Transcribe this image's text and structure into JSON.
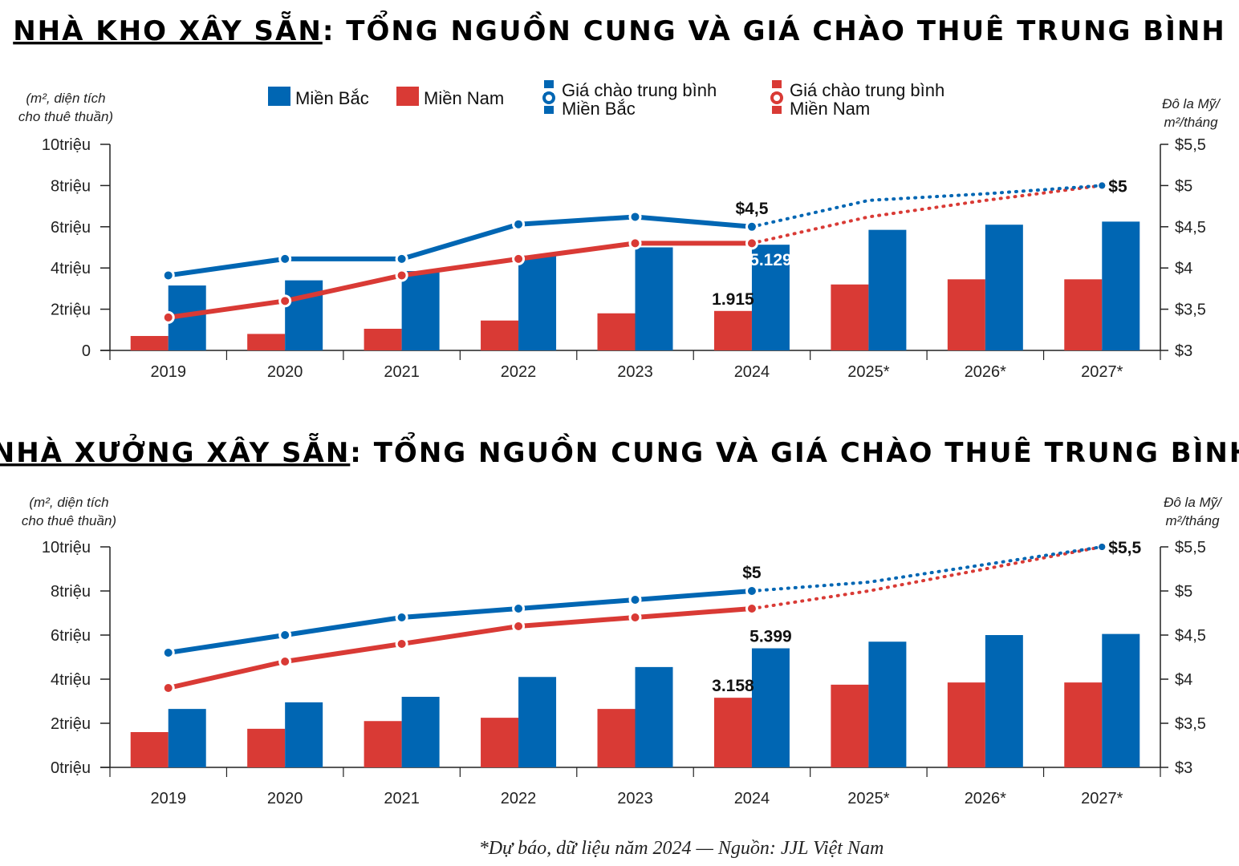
{
  "colors": {
    "north": "#0066b3",
    "south": "#d93a35",
    "axis": "#222222"
  },
  "footnote": "*Dự báo, dữ liệu năm 2024 — Nguồn: JJL Việt Nam",
  "legend": {
    "north_bar": "Miền Bắc",
    "south_bar": "Miền Nam",
    "north_line_1": "Giá chào trung bình",
    "north_line_2": "Miền Bắc",
    "south_line_1": "Giá chào trung bình",
    "south_line_2": "Miền Nam"
  },
  "chart_data": [
    {
      "type": "bar",
      "title_underlined": "NHÀ KHO XÂY SẴN",
      "title_rest": ": TỔNG NGUỒN CUNG VÀ GIÁ CHÀO THUÊ TRUNG BÌNH",
      "ylabel_left_1": "(m², diện tích",
      "ylabel_left_2": "cho thuê thuần)",
      "ylabel_right_1": "Đô la Mỹ/",
      "ylabel_right_2": "m²/tháng",
      "categories": [
        "2019",
        "2020",
        "2021",
        "2022",
        "2023",
        "2024",
        "2025*",
        "2026*",
        "2027*"
      ],
      "ylim": [
        0,
        10
      ],
      "yticks": [
        "0",
        "2triệu",
        "4triệu",
        "6triệu",
        "8triệu",
        "10triệu"
      ],
      "y2lim": [
        3,
        5.5
      ],
      "y2ticks": [
        "$3",
        "$3,5",
        "$4",
        "$4,5",
        "$5",
        "$5,5"
      ],
      "series": [
        {
          "name": "Miền Nam",
          "kind": "bar",
          "values": [
            0.7,
            0.8,
            1.05,
            1.45,
            1.8,
            1.915,
            3.2,
            3.45,
            3.45
          ]
        },
        {
          "name": "Miền Bắc",
          "kind": "bar",
          "values": [
            3.15,
            3.4,
            3.85,
            4.6,
            5.0,
            5.129,
            5.85,
            6.1,
            6.25
          ]
        },
        {
          "name": "Giá chào trung bình Miền Bắc",
          "kind": "line",
          "values": [
            3.91,
            4.11,
            4.11,
            4.53,
            4.62,
            4.5,
            4.82,
            4.9,
            5.0
          ],
          "dotted_from": 5
        },
        {
          "name": "Giá chào trung bình Miền Nam",
          "kind": "line",
          "values": [
            3.4,
            3.6,
            3.91,
            4.11,
            4.3,
            4.3,
            4.62,
            4.82,
            5.0
          ],
          "dotted_from": 5
        }
      ],
      "annotations": [
        {
          "text": "$4,5",
          "series": 2,
          "index": 5,
          "pos": "above"
        },
        {
          "text": "5.129",
          "series": 1,
          "index": 5,
          "pos": "inside"
        },
        {
          "text": "1.915",
          "series": 0,
          "index": 5,
          "pos": "above"
        },
        {
          "text": "$5",
          "series": 3,
          "index": 8,
          "pos": "right"
        }
      ]
    },
    {
      "type": "bar",
      "title_underlined": "NHÀ XƯỞNG XÂY SẴN",
      "title_rest": ": TỔNG NGUỒN CUNG VÀ GIÁ CHÀO THUÊ TRUNG BÌNH",
      "ylabel_left_1": "(m², diện tích",
      "ylabel_left_2": "cho thuê thuần)",
      "ylabel_right_1": "Đô la Mỹ/",
      "ylabel_right_2": "m²/tháng",
      "categories": [
        "2019",
        "2020",
        "2021",
        "2022",
        "2023",
        "2024",
        "2025*",
        "2026*",
        "2027*"
      ],
      "ylim": [
        0,
        10
      ],
      "yticks": [
        "0triệu",
        "2triệu",
        "4triệu",
        "6triệu",
        "8triệu",
        "10triệu"
      ],
      "y2lim": [
        3,
        5.5
      ],
      "y2ticks": [
        "$3",
        "$3,5",
        "$4",
        "$4,5",
        "$5",
        "$5,5"
      ],
      "series": [
        {
          "name": "Miền Nam",
          "kind": "bar",
          "values": [
            1.6,
            1.75,
            2.1,
            2.25,
            2.65,
            3.158,
            3.75,
            3.85,
            3.85
          ]
        },
        {
          "name": "Miền Bắc",
          "kind": "bar",
          "values": [
            2.65,
            2.95,
            3.2,
            4.1,
            4.55,
            5.399,
            5.7,
            6.0,
            6.05
          ]
        },
        {
          "name": "Giá chào trung bình Miền Bắc",
          "kind": "line",
          "values": [
            4.3,
            4.5,
            4.7,
            4.8,
            4.9,
            5.0,
            5.1,
            5.3,
            5.5
          ],
          "dotted_from": 5
        },
        {
          "name": "Giá chào trung bình Miền Nam",
          "kind": "line",
          "values": [
            3.9,
            4.2,
            4.4,
            4.6,
            4.7,
            4.8,
            5.0,
            5.25,
            5.5
          ],
          "dotted_from": 5
        }
      ],
      "annotations": [
        {
          "text": "$5",
          "series": 2,
          "index": 5,
          "pos": "above"
        },
        {
          "text": "5.399",
          "series": 1,
          "index": 5,
          "pos": "above"
        },
        {
          "text": "3.158",
          "series": 0,
          "index": 5,
          "pos": "above"
        },
        {
          "text": "$5,5",
          "series": 3,
          "index": 8,
          "pos": "right"
        }
      ]
    }
  ]
}
